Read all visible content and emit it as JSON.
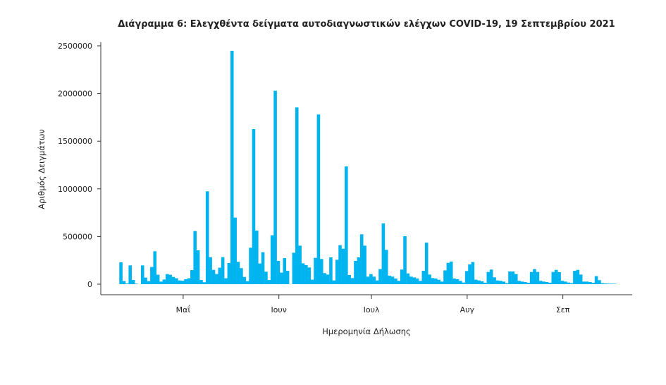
{
  "chart_data": {
    "type": "bar",
    "title": "Διάγραμμα 6: Ελεγχθέντα δείγματα αυτοδιαγνωστικών ελέγχων COVID-19, 19 Σεπτεμβρίου 2021",
    "xlabel": "Ημερομηνία Δήλωσης",
    "ylabel": "Αριθμός Δειγμάτων",
    "ylim": [
      0,
      2500000
    ],
    "yticks": [
      "0",
      "500000",
      "1000000",
      "1500000",
      "2000000",
      "2500000"
    ],
    "start_date": "2021-04-11",
    "xticks": [
      {
        "label": "Μαΐ",
        "day": 20
      },
      {
        "label": "Ιουν",
        "day": 51
      },
      {
        "label": "Ιουλ",
        "day": 81
      },
      {
        "label": "Αυγ",
        "day": 112
      },
      {
        "label": "Σεπ",
        "day": 143
      }
    ],
    "color": "#00b4ef",
    "values": [
      229000,
      32000,
      7000,
      197000,
      44000,
      5000,
      0,
      197000,
      69000,
      32000,
      180000,
      345000,
      99000,
      27000,
      49000,
      106000,
      99000,
      76000,
      62000,
      39000,
      37000,
      52000,
      62000,
      148000,
      557000,
      355000,
      44000,
      20000,
      974000,
      283000,
      150000,
      106000,
      173000,
      283000,
      62000,
      222000,
      2448000,
      698000,
      234000,
      168000,
      76000,
      32000,
      382000,
      1627000,
      562000,
      217000,
      335000,
      131000,
      44000,
      513000,
      2029000,
      244000,
      121000,
      274000,
      140000,
      0,
      330000,
      1854000,
      404000,
      219000,
      200000,
      175000,
      47000,
      276000,
      1780000,
      264000,
      116000,
      101000,
      281000,
      39000,
      256000,
      409000,
      372000,
      1235000,
      96000,
      64000,
      244000,
      281000,
      523000,
      404000,
      79000,
      106000,
      79000,
      39000,
      158000,
      638000,
      360000,
      89000,
      79000,
      59000,
      35000,
      153000,
      503000,
      113000,
      79000,
      71000,
      59000,
      35000,
      140000,
      436000,
      101000,
      64000,
      59000,
      47000,
      27000,
      145000,
      224000,
      237000,
      59000,
      52000,
      35000,
      17000,
      138000,
      207000,
      232000,
      47000,
      39000,
      30000,
      15000,
      128000,
      153000,
      72000,
      39000,
      35000,
      27000,
      10000,
      133000,
      133000,
      106000,
      35000,
      27000,
      22000,
      15000,
      128000,
      158000,
      128000,
      35000,
      27000,
      22000,
      15000,
      128000,
      150000,
      126000,
      35000,
      27000,
      17000,
      10000,
      140000,
      150000,
      101000,
      27000,
      27000,
      22000,
      15000,
      84000,
      42000,
      10000,
      7000,
      5000,
      5000,
      4000
    ],
    "grid": false,
    "legend": "none"
  }
}
